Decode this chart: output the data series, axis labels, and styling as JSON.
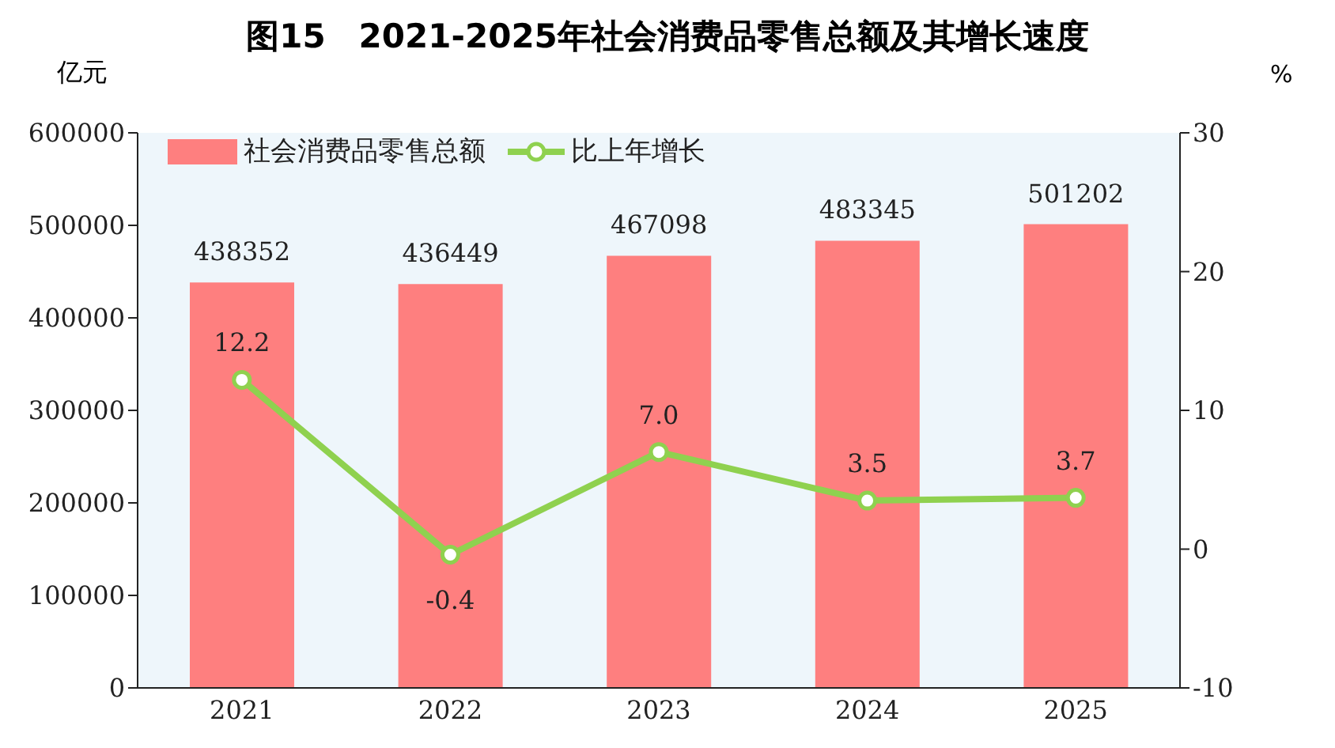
{
  "chart_data": {
    "type": "bar",
    "title": "图15　2021-2025年社会消费品零售总额及其增长速度",
    "ylabel": "亿元",
    "y2label": "%",
    "categories": [
      "2021",
      "2022",
      "2023",
      "2024",
      "2025"
    ],
    "series": [
      {
        "name": "社会消费品零售总额",
        "color": "#fe7f7f",
        "values": [
          438352,
          436449,
          467098,
          483345,
          501202
        ]
      },
      {
        "name": "比上年增长",
        "type": "line",
        "axis": "y2",
        "color": "#8fd14f",
        "values": [
          12.2,
          -0.4,
          7.0,
          3.5,
          3.7
        ],
        "value_labels": [
          "12.2",
          "-0.4",
          "7.0",
          "3.5",
          "3.7"
        ]
      }
    ],
    "data_labels": true,
    "ylim": [
      0,
      600000
    ],
    "yticks": [
      0,
      100000,
      200000,
      300000,
      400000,
      500000,
      600000
    ],
    "y2lim": [
      -10,
      30
    ],
    "y2ticks": [
      -10,
      0,
      10,
      20,
      30
    ],
    "legend": "top left",
    "marker": "circle",
    "grid": false
  }
}
